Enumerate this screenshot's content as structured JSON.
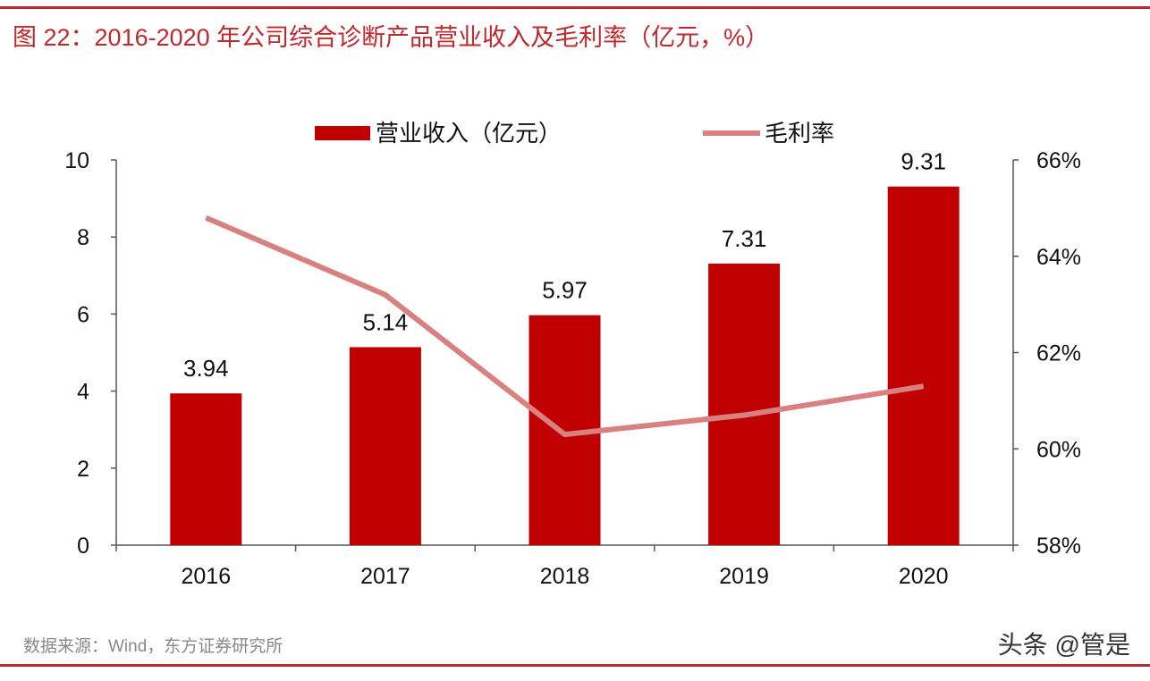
{
  "title": "图 22：2016-2020 年公司综合诊断产品营业收入及毛利率（亿元，%）",
  "source": "数据来源：Wind，东方证券研究所",
  "watermark": "头条 @管是",
  "colors": {
    "bar": "#C00000",
    "line": "#D98080",
    "title": "#C0282D"
  },
  "chart_data": {
    "type": "bar+line",
    "categories": [
      "2016",
      "2017",
      "2018",
      "2019",
      "2020"
    ],
    "series": [
      {
        "name": "营业收入（亿元）",
        "type": "bar",
        "axis": "left",
        "values": [
          3.94,
          5.14,
          5.97,
          7.31,
          9.31
        ],
        "labels": [
          "3.94",
          "5.14",
          "5.97",
          "7.31",
          "9.31"
        ]
      },
      {
        "name": "毛利率",
        "type": "line",
        "axis": "right",
        "values": [
          64.8,
          63.2,
          60.3,
          60.7,
          61.3
        ]
      }
    ],
    "left_axis": {
      "range": [
        0,
        10
      ],
      "ticks": [
        "0",
        "2",
        "4",
        "6",
        "8",
        "10"
      ]
    },
    "right_axis": {
      "range": [
        58,
        66
      ],
      "ticks": [
        "58%",
        "60%",
        "62%",
        "64%",
        "66%"
      ]
    },
    "legend": "top-center",
    "grid": false
  }
}
